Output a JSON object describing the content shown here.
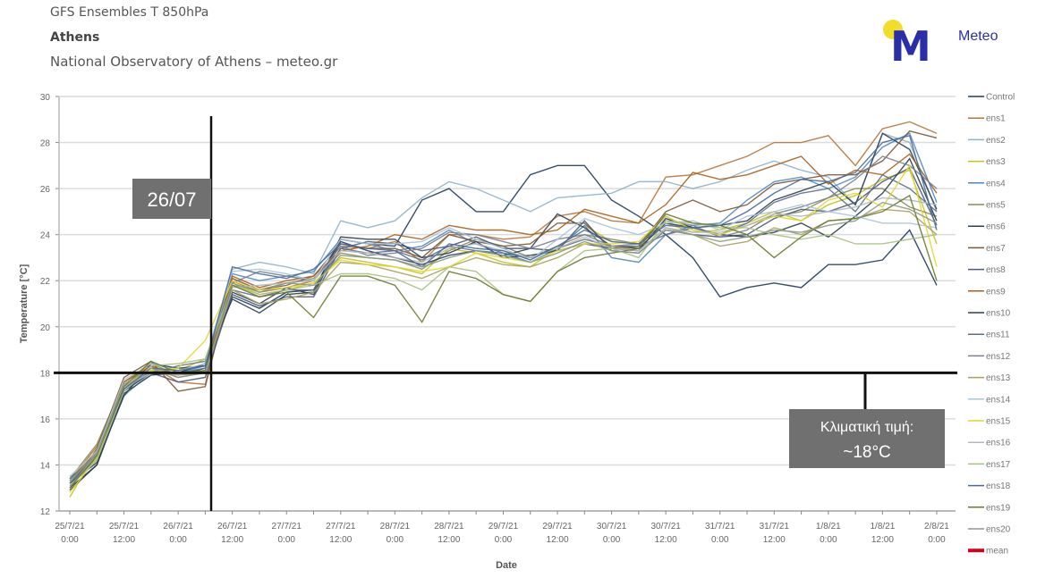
{
  "header": {
    "title": "GFS Ensembles T 850hPa",
    "location": "Athens",
    "source": "National Observatory of Athens – meteo.gr"
  },
  "logo": {
    "text": "Meteo",
    "colors": {
      "sun": "#f2de2a",
      "mark": "#2a2ea8"
    }
  },
  "annotations": {
    "date_marker": "26/07",
    "climate_label": "Κλιματική τιμή:",
    "climate_value": "~18°C",
    "climate_temperature": 18,
    "box_color": "#707070"
  },
  "chart_data": {
    "type": "line",
    "title": "",
    "xlabel": "Date",
    "ylabel": "Temperature [°C]",
    "ylim": [
      12,
      30
    ],
    "yticks": [
      12,
      14,
      16,
      18,
      20,
      22,
      24,
      26,
      28,
      30
    ],
    "xtick_labels": [
      [
        "25/7/21",
        "0:00"
      ],
      [
        "25/7/21",
        "12:00"
      ],
      [
        "26/7/21",
        "0:00"
      ],
      [
        "26/7/21",
        "12:00"
      ],
      [
        "27/7/21",
        "0:00"
      ],
      [
        "27/7/21",
        "12:00"
      ],
      [
        "28/7/21",
        "0:00"
      ],
      [
        "28/7/21",
        "12:00"
      ],
      [
        "29/7/21",
        "0:00"
      ],
      [
        "29/7/21",
        "12:00"
      ],
      [
        "30/7/21",
        "0:00"
      ],
      [
        "30/7/21",
        "12:00"
      ],
      [
        "31/7/21",
        "0:00"
      ],
      [
        "31/7/21",
        "12:00"
      ],
      [
        "1/8/21",
        "0:00"
      ],
      [
        "1/8/21",
        "12:00"
      ],
      [
        "2/8/21",
        "0:00"
      ]
    ],
    "x_step_hours": 6,
    "grid": true,
    "legend_position": "right",
    "series": [
      {
        "name": "Control",
        "color": "#1f3b5a",
        "values": [
          13.0,
          14.0,
          17.2,
          18.0,
          17.9,
          18.2,
          21.3,
          20.8,
          21.5,
          21.6,
          23.8,
          23.6,
          23.5,
          25.5,
          26.0,
          25.0,
          25.0,
          26.6,
          27.0,
          27.0,
          25.5,
          24.8,
          24.0,
          23.0,
          21.3,
          21.7,
          21.9,
          21.7,
          22.7,
          22.7,
          22.9,
          24.2,
          21.8
        ]
      },
      {
        "name": "ens1",
        "color": "#b5763a",
        "values": [
          13.3,
          14.8,
          17.5,
          18.3,
          17.6,
          17.5,
          22.0,
          21.5,
          21.7,
          22.0,
          23.5,
          23.4,
          23.7,
          22.8,
          24.0,
          24.0,
          23.8,
          23.9,
          24.8,
          25.0,
          24.6,
          24.5,
          26.5,
          26.6,
          27.0,
          27.4,
          28.0,
          28.0,
          28.3,
          27.0,
          28.6,
          28.9,
          28.4
        ]
      },
      {
        "name": "ens2",
        "color": "#8fb3c8",
        "values": [
          13.5,
          14.2,
          17.0,
          18.0,
          18.3,
          18.5,
          22.5,
          22.8,
          22.6,
          22.3,
          24.6,
          24.3,
          24.6,
          25.6,
          26.3,
          26.0,
          25.5,
          25.0,
          25.6,
          25.7,
          25.8,
          26.3,
          26.3,
          26.0,
          26.3,
          26.8,
          27.2,
          26.8,
          26.5,
          25.3,
          28.4,
          28.0,
          25.0
        ]
      },
      {
        "name": "ens3",
        "color": "#c8c020",
        "values": [
          12.6,
          14.6,
          17.5,
          18.2,
          18.1,
          18.6,
          21.9,
          21.4,
          21.6,
          21.9,
          23.0,
          22.8,
          22.6,
          22.3,
          23.4,
          23.2,
          22.8,
          22.6,
          23.4,
          24.4,
          23.7,
          23.6,
          24.5,
          24.1,
          24.2,
          24.5,
          25.0,
          24.6,
          25.3,
          25.7,
          26.4,
          26.8,
          23.6
        ]
      },
      {
        "name": "ens4",
        "color": "#4f87c2",
        "values": [
          13.1,
          14.3,
          17.3,
          18.1,
          18.0,
          18.3,
          22.3,
          22.0,
          22.2,
          22.4,
          23.8,
          23.6,
          23.3,
          23.5,
          24.2,
          23.6,
          23.2,
          22.8,
          23.4,
          24.4,
          23.0,
          22.8,
          24.0,
          24.4,
          24.5,
          25.5,
          26.3,
          26.5,
          26.0,
          26.5,
          27.8,
          28.4,
          25.4
        ]
      },
      {
        "name": "ens5",
        "color": "#8a8a5a",
        "values": [
          13.4,
          14.9,
          17.6,
          18.4,
          17.9,
          18.0,
          21.8,
          21.6,
          21.9,
          22.1,
          23.2,
          23.0,
          22.9,
          22.5,
          23.3,
          23.8,
          23.5,
          23.0,
          23.5,
          24.0,
          23.8,
          23.6,
          24.8,
          24.2,
          24.0,
          24.4,
          24.8,
          25.0,
          25.6,
          26.0,
          26.0,
          25.2,
          24.8
        ]
      },
      {
        "name": "ens6",
        "color": "#2b3f55",
        "values": [
          13.2,
          14.1,
          17.0,
          18.4,
          18.2,
          18.3,
          21.5,
          21.0,
          21.7,
          21.4,
          23.7,
          23.3,
          23.0,
          22.7,
          23.1,
          23.3,
          23.1,
          23.4,
          24.9,
          24.3,
          23.5,
          23.4,
          24.5,
          24.3,
          24.4,
          24.6,
          25.5,
          25.9,
          26.3,
          25.3,
          28.4,
          27.7,
          25.1
        ]
      },
      {
        "name": "ens7",
        "color": "#7a5a3a",
        "values": [
          13.0,
          14.7,
          17.8,
          18.5,
          17.2,
          17.4,
          22.1,
          21.6,
          21.8,
          22.2,
          23.6,
          23.4,
          23.4,
          23.0,
          24.0,
          23.7,
          23.5,
          23.6,
          24.5,
          24.5,
          23.4,
          23.5,
          25.0,
          25.5,
          25.0,
          25.3,
          26.2,
          26.4,
          26.6,
          26.6,
          27.2,
          28.5,
          28.2
        ]
      },
      {
        "name": "ens8",
        "color": "#4a5a7a",
        "values": [
          13.4,
          14.4,
          17.4,
          18.0,
          17.6,
          17.8,
          21.4,
          20.9,
          21.3,
          21.3,
          23.4,
          23.7,
          23.6,
          23.3,
          23.5,
          23.9,
          23.4,
          23.4,
          23.3,
          24.6,
          23.3,
          23.2,
          24.2,
          24.0,
          23.9,
          24.0,
          24.7,
          25.1,
          25.0,
          25.4,
          26.3,
          26.9,
          24.4
        ]
      },
      {
        "name": "ens9",
        "color": "#a8611a",
        "values": [
          13.3,
          14.6,
          17.6,
          18.3,
          17.9,
          18.1,
          22.2,
          21.7,
          22.0,
          22.2,
          23.3,
          23.5,
          24.0,
          23.8,
          24.4,
          24.2,
          24.2,
          24.0,
          24.2,
          25.1,
          24.8,
          24.5,
          25.3,
          26.7,
          26.4,
          26.6,
          27.0,
          27.4,
          26.2,
          26.8,
          26.6,
          27.5,
          25.8
        ]
      },
      {
        "name": "ens10",
        "color": "#2e3e4e",
        "values": [
          12.9,
          14.0,
          17.1,
          17.9,
          18.0,
          18.4,
          21.2,
          20.6,
          21.4,
          21.5,
          23.9,
          23.8,
          23.8,
          23.0,
          23.2,
          23.7,
          23.0,
          23.1,
          23.3,
          23.6,
          23.4,
          23.3,
          24.7,
          24.3,
          24.0,
          23.9,
          24.1,
          24.5,
          23.9,
          24.8,
          25.8,
          27.3,
          24.6
        ]
      },
      {
        "name": "ens11",
        "color": "#5c6f88",
        "values": [
          13.2,
          14.3,
          17.2,
          18.1,
          18.0,
          18.2,
          21.6,
          21.3,
          21.6,
          21.6,
          23.4,
          23.2,
          23.3,
          22.9,
          23.5,
          23.3,
          23.2,
          23.0,
          23.4,
          23.8,
          23.5,
          23.5,
          24.0,
          24.3,
          24.0,
          24.5,
          25.4,
          25.8,
          26.0,
          25.0,
          26.6,
          26.0,
          25.0
        ]
      },
      {
        "name": "ens12",
        "color": "#7a8090",
        "values": [
          13.4,
          14.2,
          17.3,
          18.0,
          18.3,
          18.5,
          21.9,
          22.4,
          22.2,
          22.0,
          23.5,
          23.1,
          23.2,
          23.4,
          24.1,
          24.0,
          23.7,
          23.4,
          23.8,
          24.0,
          23.5,
          23.6,
          24.6,
          24.4,
          23.9,
          24.2,
          24.9,
          25.2,
          25.6,
          26.4,
          27.4,
          27.0,
          26.0
        ]
      },
      {
        "name": "ens13",
        "color": "#a8a060",
        "values": [
          13.0,
          14.5,
          17.4,
          18.2,
          17.8,
          18.0,
          21.6,
          21.0,
          21.2,
          21.5,
          22.8,
          22.7,
          22.4,
          22.1,
          22.6,
          23.0,
          22.7,
          22.6,
          23.0,
          23.6,
          23.5,
          23.3,
          24.3,
          24.0,
          23.5,
          23.7,
          24.3,
          24.0,
          24.6,
          24.7,
          25.1,
          25.0,
          24.0
        ]
      },
      {
        "name": "ens14",
        "color": "#a8c4d8",
        "values": [
          13.5,
          14.6,
          17.7,
          18.4,
          18.1,
          18.4,
          22.4,
          22.5,
          22.3,
          22.0,
          23.8,
          23.6,
          23.6,
          23.7,
          24.3,
          23.8,
          23.4,
          22.9,
          23.8,
          24.7,
          24.3,
          24.0,
          24.5,
          24.6,
          24.2,
          24.8,
          25.0,
          25.3,
          25.0,
          24.8,
          24.5,
          24.5,
          24.3
        ]
      },
      {
        "name": "ens15",
        "color": "#e0d830",
        "values": [
          12.8,
          14.3,
          17.5,
          18.1,
          18.2,
          19.4,
          22.0,
          21.6,
          21.7,
          21.9,
          22.9,
          22.7,
          22.6,
          22.4,
          22.6,
          23.2,
          23.0,
          22.8,
          23.3,
          23.6,
          23.6,
          23.7,
          24.8,
          24.2,
          24.0,
          24.4,
          24.8,
          24.6,
          25.5,
          25.8,
          25.2,
          27.0,
          22.6
        ]
      },
      {
        "name": "ens16",
        "color": "#b0b8c0",
        "values": [
          13.3,
          14.4,
          17.4,
          18.0,
          17.9,
          18.1,
          21.7,
          21.8,
          21.9,
          22.0,
          23.3,
          23.2,
          23.0,
          22.8,
          23.4,
          23.6,
          23.3,
          23.0,
          23.4,
          23.9,
          23.4,
          23.3,
          24.3,
          24.1,
          24.1,
          24.4,
          24.9,
          24.8,
          25.0,
          25.2,
          25.6,
          25.5,
          25.3
        ]
      },
      {
        "name": "ens17",
        "color": "#a8c080",
        "values": [
          13.1,
          14.2,
          17.2,
          18.3,
          18.4,
          18.6,
          21.8,
          21.4,
          21.6,
          21.8,
          22.3,
          22.3,
          22.1,
          21.6,
          22.6,
          22.4,
          21.4,
          21.1,
          22.4,
          23.3,
          23.4,
          23.0,
          24.6,
          24.5,
          24.3,
          24.3,
          24.0,
          23.8,
          24.0,
          23.6,
          23.6,
          23.8,
          24.0
        ]
      },
      {
        "name": "ens18",
        "color": "#4a6a9a",
        "values": [
          13.2,
          14.5,
          17.3,
          18.2,
          18.1,
          18.3,
          22.6,
          22.3,
          22.1,
          22.5,
          23.6,
          23.4,
          23.3,
          22.6,
          23.6,
          23.4,
          23.3,
          22.9,
          23.5,
          24.2,
          23.7,
          23.6,
          24.4,
          24.3,
          24.4,
          25.0,
          25.8,
          26.4,
          26.3,
          26.7,
          28.0,
          28.3,
          24.2
        ]
      },
      {
        "name": "ens19",
        "color": "#6a7a30",
        "values": [
          13.0,
          14.4,
          17.4,
          18.5,
          18.0,
          18.1,
          21.8,
          21.3,
          21.5,
          20.4,
          22.2,
          22.2,
          21.8,
          20.2,
          22.4,
          22.1,
          21.4,
          21.1,
          22.4,
          23.0,
          23.2,
          23.4,
          24.9,
          24.5,
          24.4,
          24.0,
          23.0,
          23.9,
          24.6,
          24.7,
          25.0,
          25.7,
          22.0
        ]
      },
      {
        "name": "ens20",
        "color": "#8a9a88",
        "values": [
          13.3,
          14.5,
          17.5,
          18.2,
          17.8,
          18.0,
          21.9,
          21.5,
          21.9,
          21.8,
          23.1,
          23.0,
          22.9,
          22.6,
          23.0,
          23.3,
          23.1,
          22.8,
          23.2,
          23.7,
          23.3,
          23.2,
          24.2,
          24.0,
          23.7,
          23.9,
          24.2,
          24.1,
          24.4,
          24.6,
          25.4,
          25.1,
          24.5
        ]
      }
    ],
    "legend_extra": {
      "name": "mean",
      "color": "#d0021b"
    }
  }
}
